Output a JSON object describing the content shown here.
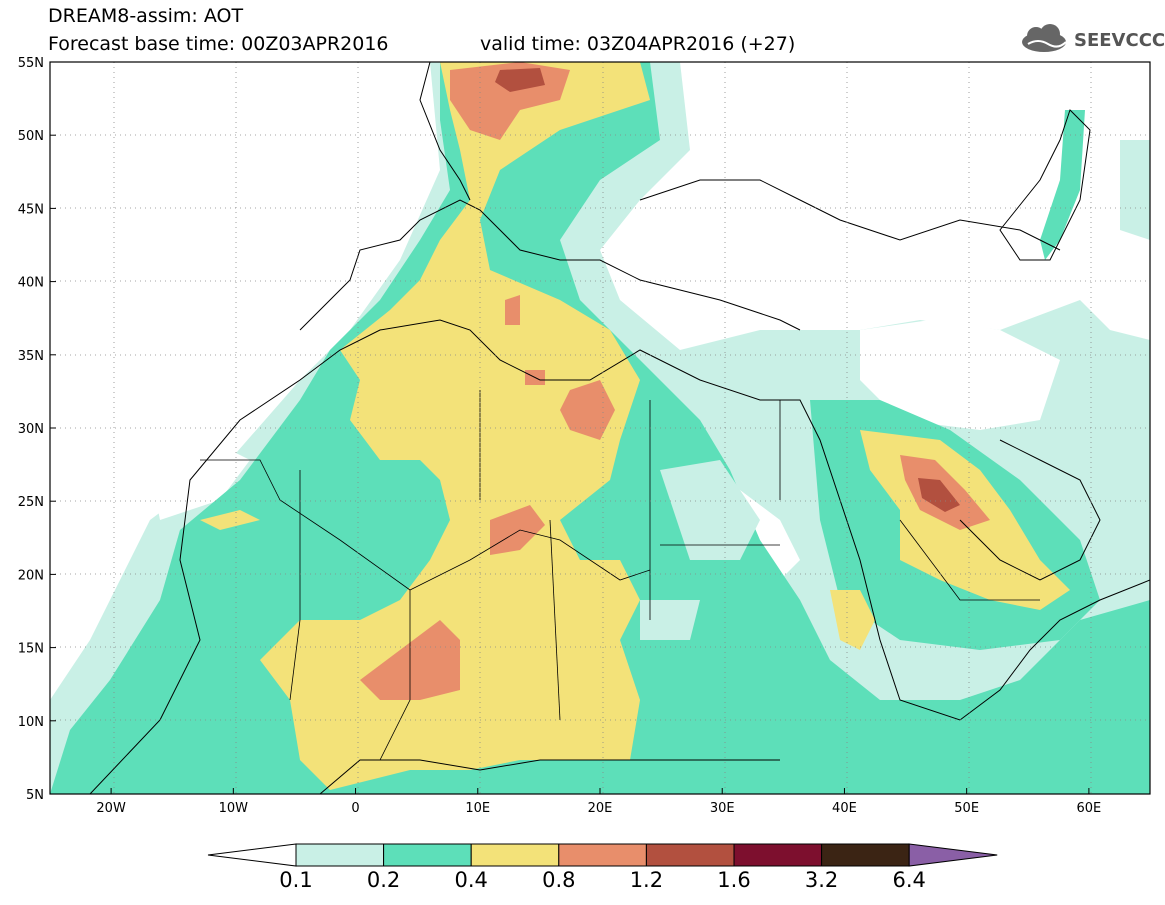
{
  "header": {
    "line1": "DREAM8-assim: AOT",
    "line2": "Forecast base time: 00Z03APR2016",
    "valid": "valid time: 03Z04APR2016 (+27)"
  },
  "logo": {
    "text": "SEEVCCC",
    "icon": "cloud-icon"
  },
  "map": {
    "lat_labels": [
      "55N",
      "50N",
      "45N",
      "40N",
      "35N",
      "30N",
      "25N",
      "20N",
      "15N",
      "10N",
      "5N"
    ],
    "lon_labels": [
      "20W",
      "10W",
      "0",
      "10E",
      "20E",
      "30E",
      "40E",
      "50E",
      "60E"
    ],
    "lat_range": [
      5,
      55
    ],
    "lon_range": [
      -25,
      65
    ],
    "grid": true
  },
  "colorbar": {
    "levels": [
      "0.1",
      "0.2",
      "0.4",
      "0.8",
      "1.2",
      "1.6",
      "3.2",
      "6.4"
    ],
    "colors": {
      "below": "#ffffff",
      "c1": "#c9f0e6",
      "c2": "#5ddfb9",
      "c3": "#f3e279",
      "c4": "#e88e6b",
      "c5": "#b2503f",
      "c6": "#7d0f2e",
      "c7": "#3b2414",
      "above": "#8a5fa6"
    }
  }
}
